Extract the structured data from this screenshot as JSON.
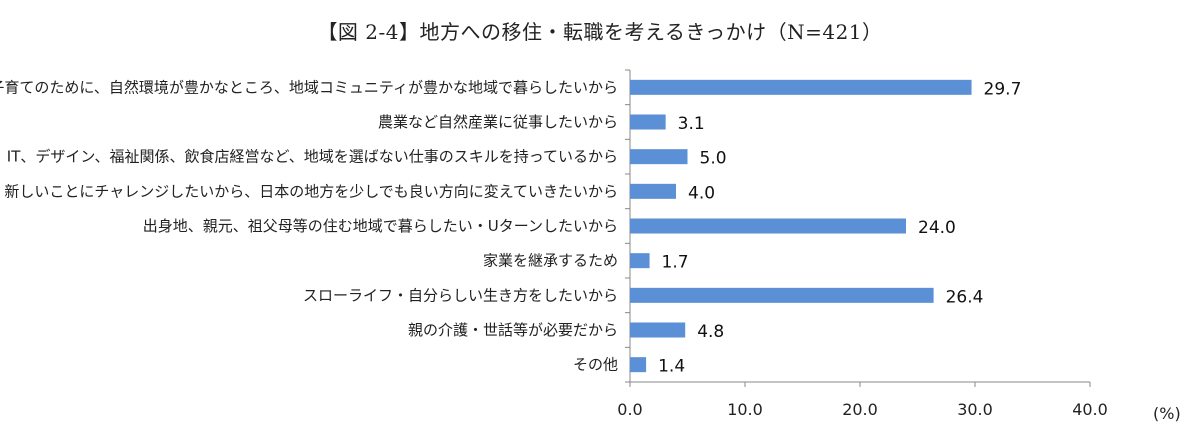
{
  "title": "【図 2-4】地方への移住・転職を考えるきっかけ（N=421）",
  "unit": "(%)",
  "chart_data": {
    "type": "bar",
    "orientation": "horizontal",
    "title": "【図 2-4】地方への移住・転職を考えるきっかけ（N=421）",
    "categories": [
      "子育てのために、自然環境が豊かなところ、地域コミュニティが豊かな地域で暮らしたいから",
      "農業など自然産業に従事したいから",
      "IT、デザイン、福祉関係、飲食店経営など、地域を選ばない仕事のスキルを持っているから",
      "新しいことにチャレンジしたいから、日本の地方を少しでも良い方向に変えていきたいから",
      "出身地、親元、祖父母等の住む地域で暮らしたい・Uターンしたいから",
      "家業を継承するため",
      "スローライフ・自分らしい生き方をしたいから",
      "親の介護・世話等が必要だから",
      "その他"
    ],
    "values": [
      29.7,
      3.1,
      5.0,
      4.0,
      24.0,
      1.7,
      26.4,
      4.8,
      1.4
    ],
    "value_labels": [
      "29.7",
      "3.1",
      "5.0",
      "4.0",
      "24.0",
      "1.7",
      "26.4",
      "4.8",
      "1.4"
    ],
    "xlim": [
      0,
      40
    ],
    "xticks": [
      0,
      10,
      20,
      30,
      40
    ],
    "xtick_labels": [
      "0.0",
      "10.0",
      "20.0",
      "30.0",
      "40.0"
    ],
    "xlabel": "(%)",
    "bar_color": "#5b8fd6",
    "grid": false,
    "legend": "none"
  }
}
